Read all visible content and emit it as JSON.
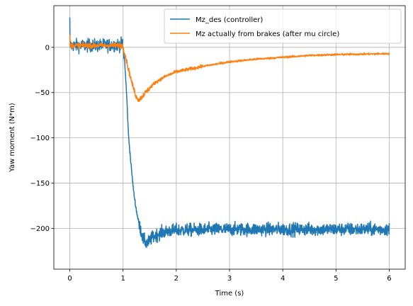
{
  "chart_data": {
    "type": "line",
    "title": "",
    "xlabel": "Time (s)",
    "ylabel": "Yaw moment (N*m)",
    "xlim": [
      -0.3,
      6.3
    ],
    "ylim": [
      -245,
      46
    ],
    "xticks": [
      0,
      1,
      2,
      3,
      4,
      5,
      6
    ],
    "yticks": [
      0,
      -50,
      -100,
      -150,
      -200
    ],
    "xtick_labels": [
      "0",
      "1",
      "2",
      "3",
      "4",
      "5",
      "6"
    ],
    "ytick_labels": [
      "0",
      "−50",
      "−100",
      "−150",
      "−200"
    ],
    "grid": true,
    "legend_position": "top-right",
    "series": [
      {
        "name": "Mz_des (controller)",
        "color": "#1f77b4",
        "noise": 7,
        "points": [
          [
            0,
            2
          ],
          [
            0.5,
            2
          ],
          [
            0.99,
            3
          ],
          [
            1.03,
            -15
          ],
          [
            1.07,
            -55
          ],
          [
            1.1,
            -95
          ],
          [
            1.15,
            -130
          ],
          [
            1.2,
            -160
          ],
          [
            1.25,
            -180
          ],
          [
            1.3,
            -195
          ],
          [
            1.38,
            -212
          ],
          [
            1.45,
            -217
          ],
          [
            1.55,
            -210
          ],
          [
            1.7,
            -205
          ],
          [
            1.85,
            -203
          ],
          [
            2.0,
            -202
          ],
          [
            3.0,
            -201
          ],
          [
            4.0,
            -201
          ],
          [
            5.0,
            -201
          ],
          [
            6.0,
            -201
          ]
        ]
      },
      {
        "name": "Mz actually from brakes (after mu circle)",
        "color": "#ff7f0e",
        "noise": 3,
        "points": [
          [
            0,
            2
          ],
          [
            0.5,
            2
          ],
          [
            0.99,
            2
          ],
          [
            1.03,
            -6
          ],
          [
            1.1,
            -24
          ],
          [
            1.18,
            -42
          ],
          [
            1.25,
            -55
          ],
          [
            1.3,
            -58
          ],
          [
            1.35,
            -55
          ],
          [
            1.45,
            -48
          ],
          [
            1.6,
            -39
          ],
          [
            1.8,
            -32
          ],
          [
            2.0,
            -27
          ],
          [
            2.5,
            -21
          ],
          [
            3.0,
            -16
          ],
          [
            3.5,
            -13
          ],
          [
            4.0,
            -11
          ],
          [
            4.5,
            -9
          ],
          [
            5.0,
            -8
          ],
          [
            5.5,
            -7.5
          ],
          [
            6.0,
            -7
          ]
        ]
      }
    ]
  }
}
